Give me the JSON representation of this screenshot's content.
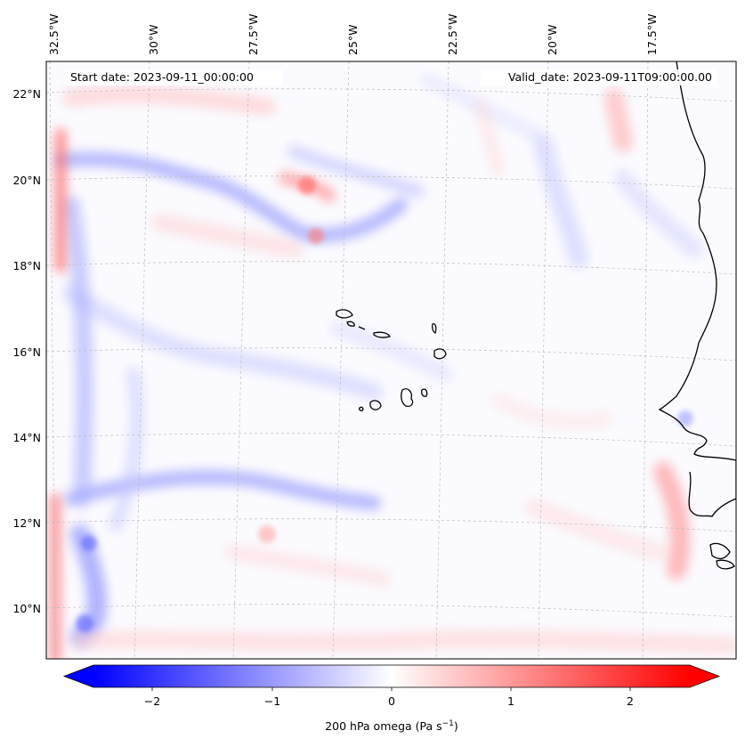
{
  "map": {
    "start_label": "Start date: 2023-09-11_00:00:00",
    "valid_label": "Valid_date: 2023-09-11T09:00:00.00",
    "lon_labels": [
      "32.5°W",
      "30°W",
      "27.5°W",
      "25°W",
      "22.5°W",
      "20°W",
      "17.5°W"
    ],
    "lat_labels": [
      "22°N",
      "20°N",
      "18°N",
      "16°N",
      "14°N",
      "12°N",
      "10°N"
    ],
    "colors": {
      "negative_max": "#0000ff",
      "positive_max": "#ff0000",
      "neutral": "#ffffff",
      "coastline": "#000000",
      "gridline": "#bbbbbb"
    }
  },
  "colorbar": {
    "label_prefix": "200 hPa omega (Pa s",
    "label_exp": "−1",
    "label_suffix": ")",
    "ticks": [
      "−2",
      "−1",
      "0",
      "1",
      "2"
    ],
    "range": [
      -2.6,
      2.6
    ],
    "extend": "both"
  }
}
